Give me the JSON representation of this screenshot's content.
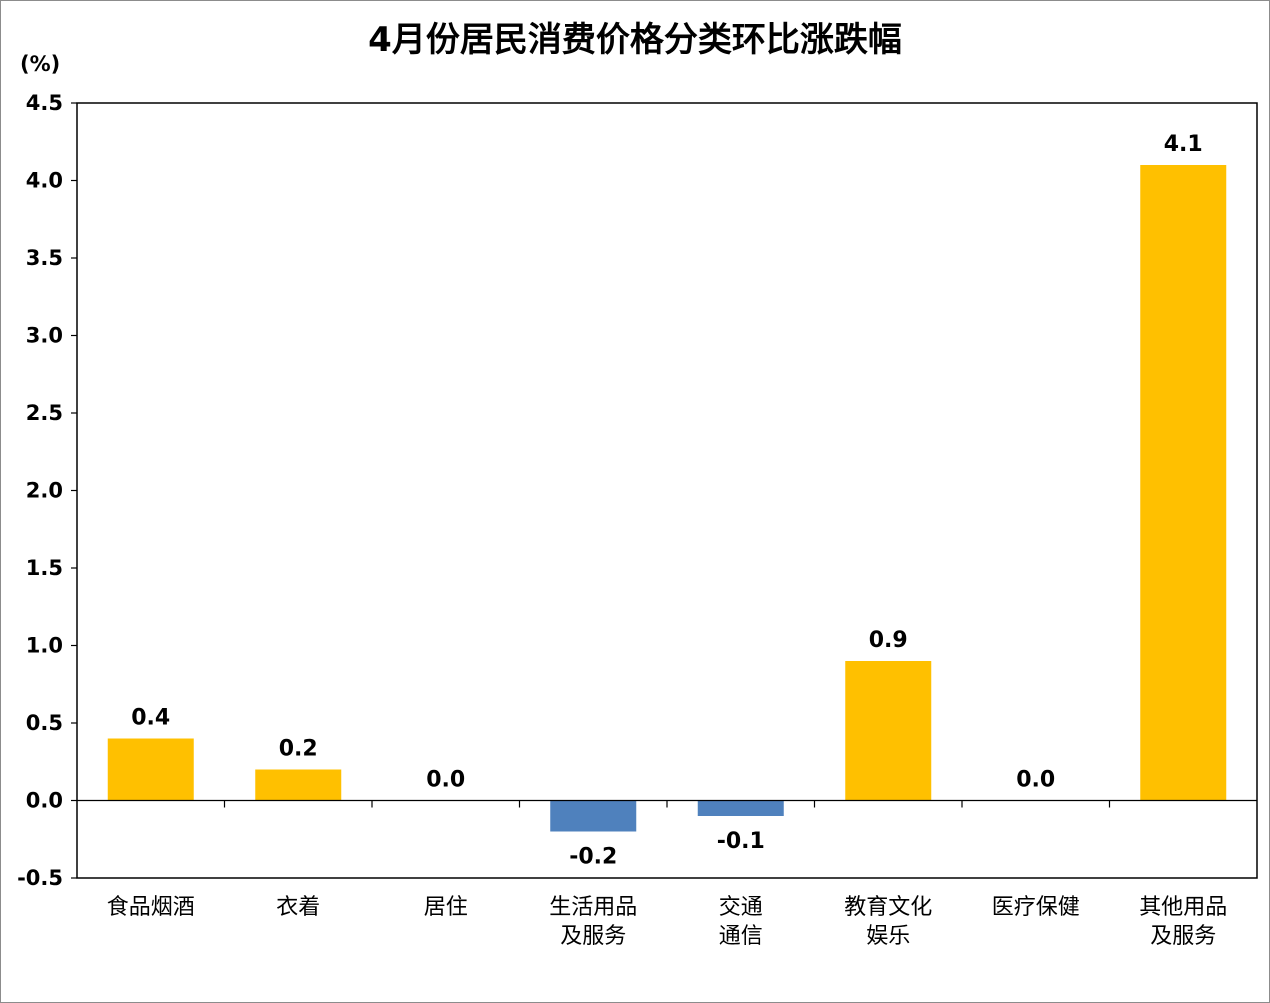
{
  "chart_data": {
    "type": "bar",
    "title": "4月份居民消费价格分类环比涨跌幅",
    "y_unit": "(%)",
    "ylim": [
      -0.5,
      4.5
    ],
    "y_ticks": [
      "-0.5",
      "0.0",
      "0.5",
      "1.0",
      "1.5",
      "2.0",
      "2.5",
      "3.0",
      "3.5",
      "4.0",
      "4.5"
    ],
    "categories": [
      [
        "食品烟酒"
      ],
      [
        "衣着"
      ],
      [
        "居住"
      ],
      [
        "生活用品",
        "及服务"
      ],
      [
        "交通",
        "通信"
      ],
      [
        "教育文化",
        "娱乐"
      ],
      [
        "医疗保健"
      ],
      [
        "其他用品",
        "及服务"
      ]
    ],
    "values": [
      0.4,
      0.2,
      0.0,
      -0.2,
      -0.1,
      0.9,
      0.0,
      4.1
    ],
    "data_labels": [
      "0.4",
      "0.2",
      "0.0",
      "-0.2",
      "-0.1",
      "0.9",
      "0.0",
      "4.1"
    ],
    "colors": {
      "positive": "#FFC000",
      "negative": "#4F81BD"
    },
    "grid": false,
    "legend": "none"
  }
}
